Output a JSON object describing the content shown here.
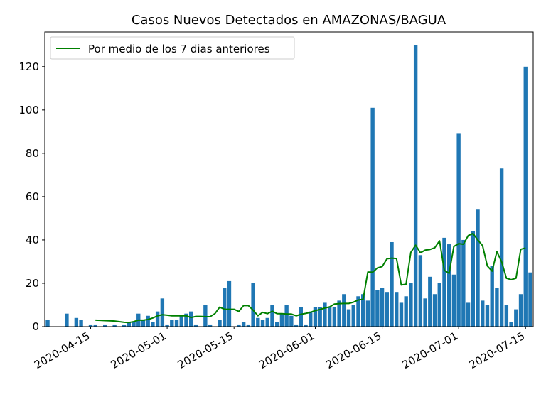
{
  "chart_data": {
    "type": "bar",
    "title": "Casos Nuevos Detectados en AMAZONAS/BAGUA",
    "xlabel": "",
    "ylabel": "",
    "x_start": "2020-04-06",
    "x_tick_labels": [
      "2020-04-15",
      "2020-05-01",
      "2020-05-15",
      "2020-06-01",
      "2020-06-15",
      "2020-07-01",
      "2020-07-15"
    ],
    "y_ticks": [
      0,
      20,
      40,
      60,
      80,
      100,
      120
    ],
    "ylim": [
      0,
      136
    ],
    "legend_position": "top-left",
    "colors": {
      "bars": "#1f77b4",
      "line": "#008000"
    },
    "series": [
      {
        "type": "bar",
        "values": [
          3,
          0,
          0,
          0,
          6,
          0,
          4,
          3,
          0,
          1,
          1,
          0,
          1,
          0,
          1,
          0,
          1,
          2,
          2,
          6,
          3,
          5,
          2,
          7,
          13,
          1,
          3,
          3,
          5,
          6,
          7,
          1,
          0,
          10,
          1,
          0,
          3,
          18,
          21,
          0,
          1,
          2,
          1,
          20,
          4,
          3,
          4,
          10,
          2,
          6,
          10,
          5,
          1,
          9,
          1,
          7,
          9,
          9,
          11,
          9,
          9,
          12,
          15,
          8,
          10,
          14,
          15,
          12,
          101,
          17,
          18,
          16,
          39,
          16,
          11,
          14,
          20,
          130,
          33,
          13,
          23,
          15,
          20,
          41,
          38,
          24,
          89,
          40,
          11,
          44,
          54,
          12,
          10,
          28,
          18,
          73,
          10,
          2,
          8,
          15,
          120,
          25
        ]
      },
      {
        "name": "Por medio de los 7 dias anteriores",
        "type": "line",
        "start_index": 10,
        "values": [
          3.0,
          2.9,
          2.8,
          2.7,
          2.6,
          2.3,
          2.0,
          1.9,
          2.3,
          3.0,
          3.0,
          3.3,
          4.0,
          5.0,
          5.5,
          5.3,
          5.0,
          5.0,
          5.0,
          5.0,
          4.2,
          4.7,
          4.7,
          4.6,
          4.6,
          6.0,
          9.0,
          8.0,
          8.0,
          8.0,
          7.0,
          9.7,
          9.7,
          7.6,
          5.0,
          6.6,
          6.0,
          7.1,
          6.0,
          6.0,
          5.8,
          5.8,
          5.0,
          5.7,
          6.1,
          6.6,
          7.4,
          7.9,
          8.6,
          9.1,
          10.4,
          10.6,
          10.7,
          10.7,
          11.3,
          12.3,
          12.6,
          25.2,
          25.1,
          27.1,
          27.7,
          31.3,
          31.6,
          31.4,
          19.2,
          19.6,
          34.3,
          37.6,
          34.1,
          35.3,
          35.6,
          36.4,
          39.6,
          26.0,
          24.6,
          37.0,
          38.3,
          38.0,
          42.0,
          43.0,
          40.0,
          37.4,
          28.0,
          25.6,
          34.6,
          29.9,
          22.3,
          21.7,
          22.3,
          35.7,
          36.3
        ]
      }
    ]
  }
}
